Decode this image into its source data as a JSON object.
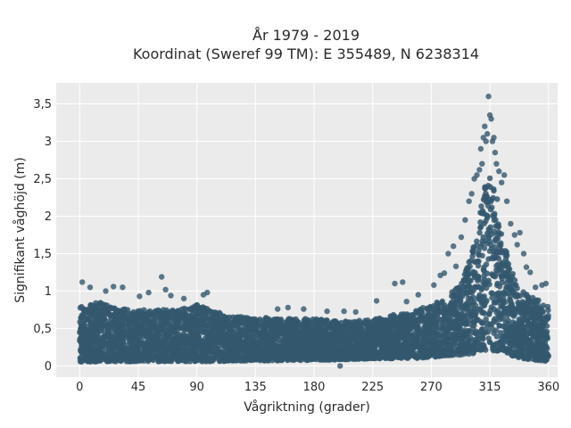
{
  "chart_data": {
    "type": "scatter",
    "title_line1": "År 1979 - 2019",
    "title_line2": "Koordinat (Sweref 99 TM): E 355489, N 6238314",
    "xlabel": "Vågriktning (grader)",
    "ylabel": "Signifikant våghöjd (m)",
    "xlim": [
      -18,
      367
    ],
    "ylim": [
      -0.15,
      3.78
    ],
    "x_ticks": [
      0,
      45,
      90,
      135,
      180,
      225,
      270,
      315,
      360
    ],
    "x_tick_labels": [
      "0",
      "45",
      "90",
      "135",
      "180",
      "225",
      "270",
      "315",
      "360"
    ],
    "y_ticks": [
      0,
      0.5,
      1,
      1.5,
      2,
      2.5,
      3,
      3.5
    ],
    "y_tick_labels": [
      "0",
      "0,5",
      "1",
      "1,5",
      "2",
      "2,5",
      "3",
      "3,5"
    ],
    "grid": true,
    "colors": {
      "marker": "#34586e",
      "plot_bg": "#ebebeb",
      "grid": "#ffffff"
    },
    "envelope": {
      "x": [
        0,
        15,
        30,
        45,
        60,
        75,
        90,
        105,
        120,
        135,
        150,
        165,
        180,
        195,
        210,
        225,
        240,
        255,
        270,
        280,
        290,
        295,
        300,
        305,
        310,
        315,
        320,
        325,
        330,
        335,
        340,
        350,
        360
      ],
      "upper": [
        0.8,
        0.85,
        0.78,
        0.75,
        0.75,
        0.75,
        0.82,
        0.72,
        0.66,
        0.65,
        0.64,
        0.63,
        0.63,
        0.6,
        0.6,
        0.62,
        0.68,
        0.72,
        0.82,
        0.9,
        1.05,
        1.2,
        1.45,
        1.8,
        2.3,
        2.7,
        2.3,
        1.75,
        1.35,
        1.15,
        1.0,
        0.9,
        0.8
      ],
      "lower": [
        0.05,
        0.06,
        0.06,
        0.06,
        0.06,
        0.06,
        0.06,
        0.06,
        0.07,
        0.07,
        0.07,
        0.07,
        0.08,
        0.08,
        0.09,
        0.1,
        0.1,
        0.1,
        0.12,
        0.13,
        0.14,
        0.15,
        0.16,
        0.18,
        0.2,
        0.2,
        0.2,
        0.18,
        0.15,
        0.12,
        0.1,
        0.08,
        0.06
      ]
    },
    "outliers": [
      {
        "x": 2,
        "y": 1.12
      },
      {
        "x": 8,
        "y": 1.05
      },
      {
        "x": 20,
        "y": 1.0
      },
      {
        "x": 26,
        "y": 1.06
      },
      {
        "x": 33,
        "y": 1.05
      },
      {
        "x": 46,
        "y": 0.93
      },
      {
        "x": 53,
        "y": 0.98
      },
      {
        "x": 63,
        "y": 1.19
      },
      {
        "x": 66,
        "y": 1.02
      },
      {
        "x": 70,
        "y": 0.94
      },
      {
        "x": 80,
        "y": 0.9
      },
      {
        "x": 95,
        "y": 0.95
      },
      {
        "x": 98,
        "y": 0.98
      },
      {
        "x": 152,
        "y": 0.76
      },
      {
        "x": 160,
        "y": 0.78
      },
      {
        "x": 172,
        "y": 0.76
      },
      {
        "x": 190,
        "y": 0.73
      },
      {
        "x": 203,
        "y": 0.73
      },
      {
        "x": 212,
        "y": 0.72
      },
      {
        "x": 228,
        "y": 0.87
      },
      {
        "x": 242,
        "y": 1.1
      },
      {
        "x": 248,
        "y": 1.12
      },
      {
        "x": 251,
        "y": 0.86
      },
      {
        "x": 260,
        "y": 0.95
      },
      {
        "x": 272,
        "y": 1.08
      },
      {
        "x": 277,
        "y": 1.21
      },
      {
        "x": 280,
        "y": 1.24
      },
      {
        "x": 283,
        "y": 1.5
      },
      {
        "x": 287,
        "y": 1.6
      },
      {
        "x": 289,
        "y": 1.33
      },
      {
        "x": 293,
        "y": 1.72
      },
      {
        "x": 296,
        "y": 1.95
      },
      {
        "x": 299,
        "y": 2.2
      },
      {
        "x": 301,
        "y": 2.3
      },
      {
        "x": 303,
        "y": 2.5
      },
      {
        "x": 305,
        "y": 2.55
      },
      {
        "x": 307,
        "y": 2.62
      },
      {
        "x": 308,
        "y": 2.9
      },
      {
        "x": 309,
        "y": 2.7
      },
      {
        "x": 310,
        "y": 3.05
      },
      {
        "x": 311,
        "y": 3.2
      },
      {
        "x": 312,
        "y": 3.0
      },
      {
        "x": 313,
        "y": 3.1
      },
      {
        "x": 314,
        "y": 3.6
      },
      {
        "x": 315,
        "y": 3.35
      },
      {
        "x": 316,
        "y": 3.3
      },
      {
        "x": 317,
        "y": 3.0
      },
      {
        "x": 318,
        "y": 3.05
      },
      {
        "x": 319,
        "y": 2.85
      },
      {
        "x": 320,
        "y": 2.7
      },
      {
        "x": 322,
        "y": 2.6
      },
      {
        "x": 324,
        "y": 2.45
      },
      {
        "x": 326,
        "y": 2.55
      },
      {
        "x": 328,
        "y": 2.2
      },
      {
        "x": 331,
        "y": 1.9
      },
      {
        "x": 334,
        "y": 1.75
      },
      {
        "x": 336,
        "y": 1.62
      },
      {
        "x": 338,
        "y": 1.78
      },
      {
        "x": 341,
        "y": 1.5
      },
      {
        "x": 343,
        "y": 1.32
      },
      {
        "x": 346,
        "y": 1.25
      },
      {
        "x": 350,
        "y": 1.05
      },
      {
        "x": 355,
        "y": 1.08
      },
      {
        "x": 358,
        "y": 1.1
      },
      {
        "x": 200,
        "y": 0.0
      }
    ]
  }
}
